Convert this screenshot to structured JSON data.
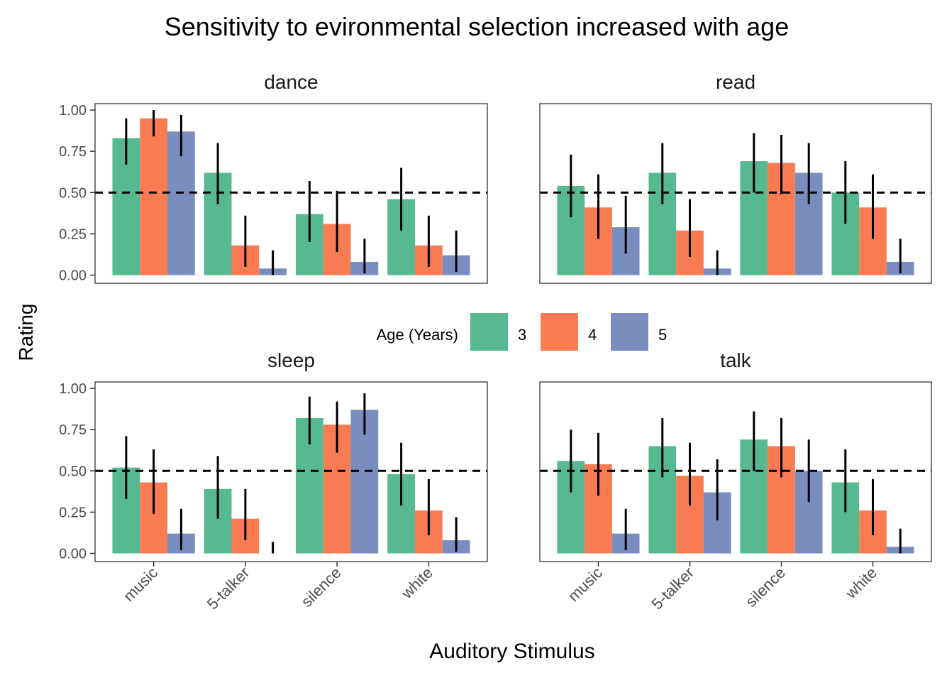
{
  "chart_data": {
    "type": "bar",
    "title": "Sensitivity to evironmental selection increased with age",
    "xlabel": "Auditory Stimulus",
    "ylabel": "Rating",
    "ylim": [
      0,
      1
    ],
    "yticks": [
      "0.00",
      "0.25",
      "0.50",
      "0.75",
      "1.00"
    ],
    "reference_line": 0.5,
    "grid": false,
    "legend": {
      "title": "Age (Years)",
      "position": "center",
      "entries": [
        {
          "label": "3",
          "color": "#56B991"
        },
        {
          "label": "4",
          "color": "#F87B52"
        },
        {
          "label": "5",
          "color": "#7A8DBF"
        }
      ]
    },
    "categories": [
      "music",
      "5-talker",
      "silence",
      "white"
    ],
    "panels": [
      {
        "name": "dance",
        "series": [
          {
            "name": "3",
            "values": [
              0.83,
              0.62,
              0.37,
              0.46
            ],
            "err_low": [
              0.67,
              0.43,
              0.2,
              0.27
            ],
            "err_high": [
              0.95,
              0.8,
              0.57,
              0.65
            ]
          },
          {
            "name": "4",
            "values": [
              0.95,
              0.18,
              0.31,
              0.18
            ],
            "err_low": [
              0.84,
              0.05,
              0.14,
              0.05
            ],
            "err_high": [
              1.0,
              0.36,
              0.51,
              0.36
            ]
          },
          {
            "name": "5",
            "values": [
              0.87,
              0.04,
              0.08,
              0.12
            ],
            "err_low": [
              0.72,
              0.0,
              0.01,
              0.02
            ],
            "err_high": [
              0.97,
              0.15,
              0.22,
              0.27
            ]
          }
        ]
      },
      {
        "name": "read",
        "series": [
          {
            "name": "3",
            "values": [
              0.54,
              0.62,
              0.69,
              0.5
            ],
            "err_low": [
              0.35,
              0.43,
              0.5,
              0.31
            ],
            "err_high": [
              0.73,
              0.8,
              0.86,
              0.69
            ]
          },
          {
            "name": "4",
            "values": [
              0.41,
              0.27,
              0.68,
              0.41
            ],
            "err_low": [
              0.22,
              0.11,
              0.49,
              0.22
            ],
            "err_high": [
              0.61,
              0.46,
              0.85,
              0.61
            ]
          },
          {
            "name": "5",
            "values": [
              0.29,
              0.04,
              0.62,
              0.08
            ],
            "err_low": [
              0.13,
              0.0,
              0.43,
              0.01
            ],
            "err_high": [
              0.48,
              0.15,
              0.8,
              0.22
            ]
          }
        ]
      },
      {
        "name": "sleep",
        "series": [
          {
            "name": "3",
            "values": [
              0.52,
              0.39,
              0.82,
              0.48
            ],
            "err_low": [
              0.33,
              0.21,
              0.66,
              0.29
            ],
            "err_high": [
              0.71,
              0.59,
              0.95,
              0.67
            ]
          },
          {
            "name": "4",
            "values": [
              0.43,
              0.21,
              0.78,
              0.26
            ],
            "err_low": [
              0.24,
              0.08,
              0.61,
              0.11
            ],
            "err_high": [
              0.63,
              0.39,
              0.92,
              0.45
            ]
          },
          {
            "name": "5",
            "values": [
              0.12,
              0.0,
              0.87,
              0.08
            ],
            "err_low": [
              0.02,
              0.0,
              0.72,
              0.01
            ],
            "err_high": [
              0.27,
              0.07,
              0.97,
              0.22
            ]
          }
        ]
      },
      {
        "name": "talk",
        "series": [
          {
            "name": "3",
            "values": [
              0.56,
              0.65,
              0.69,
              0.43
            ],
            "err_low": [
              0.37,
              0.46,
              0.5,
              0.25
            ],
            "err_high": [
              0.75,
              0.82,
              0.86,
              0.63
            ]
          },
          {
            "name": "4",
            "values": [
              0.54,
              0.47,
              0.65,
              0.26
            ],
            "err_low": [
              0.35,
              0.29,
              0.46,
              0.11
            ],
            "err_high": [
              0.73,
              0.67,
              0.82,
              0.45
            ]
          },
          {
            "name": "5",
            "values": [
              0.12,
              0.37,
              0.5,
              0.04
            ],
            "err_low": [
              0.02,
              0.2,
              0.31,
              0.0
            ],
            "err_high": [
              0.27,
              0.57,
              0.69,
              0.15
            ]
          }
        ]
      }
    ]
  }
}
